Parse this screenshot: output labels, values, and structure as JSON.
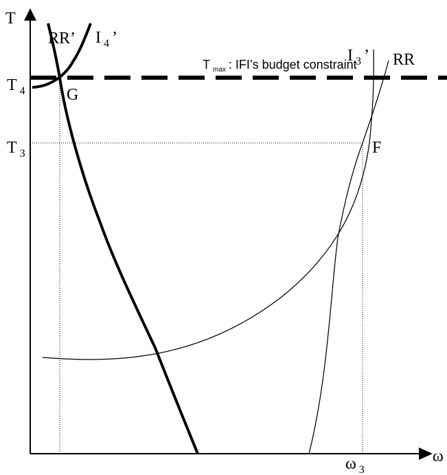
{
  "diagram": {
    "axes": {
      "y_label": "T",
      "x_label": "ω"
    },
    "tick_labels": {
      "T4": {
        "main": "T",
        "sub": "4"
      },
      "T3": {
        "main": "T",
        "sub": "3"
      },
      "omega3": {
        "main": "ω",
        "sub": "3"
      }
    },
    "budget_constraint": {
      "symbol": "T",
      "symbol_sub": "max",
      "text": ": IFI’s budget constraint"
    },
    "curve_labels": {
      "RRprime": "RR’",
      "I4prime": {
        "main": "I",
        "sub": "4",
        "suffix": "’"
      },
      "I3prime": {
        "main": "I",
        "sub": "3",
        "suffix": "’"
      },
      "RR": "RR"
    },
    "point_labels": {
      "G": "G",
      "F": "F"
    }
  }
}
